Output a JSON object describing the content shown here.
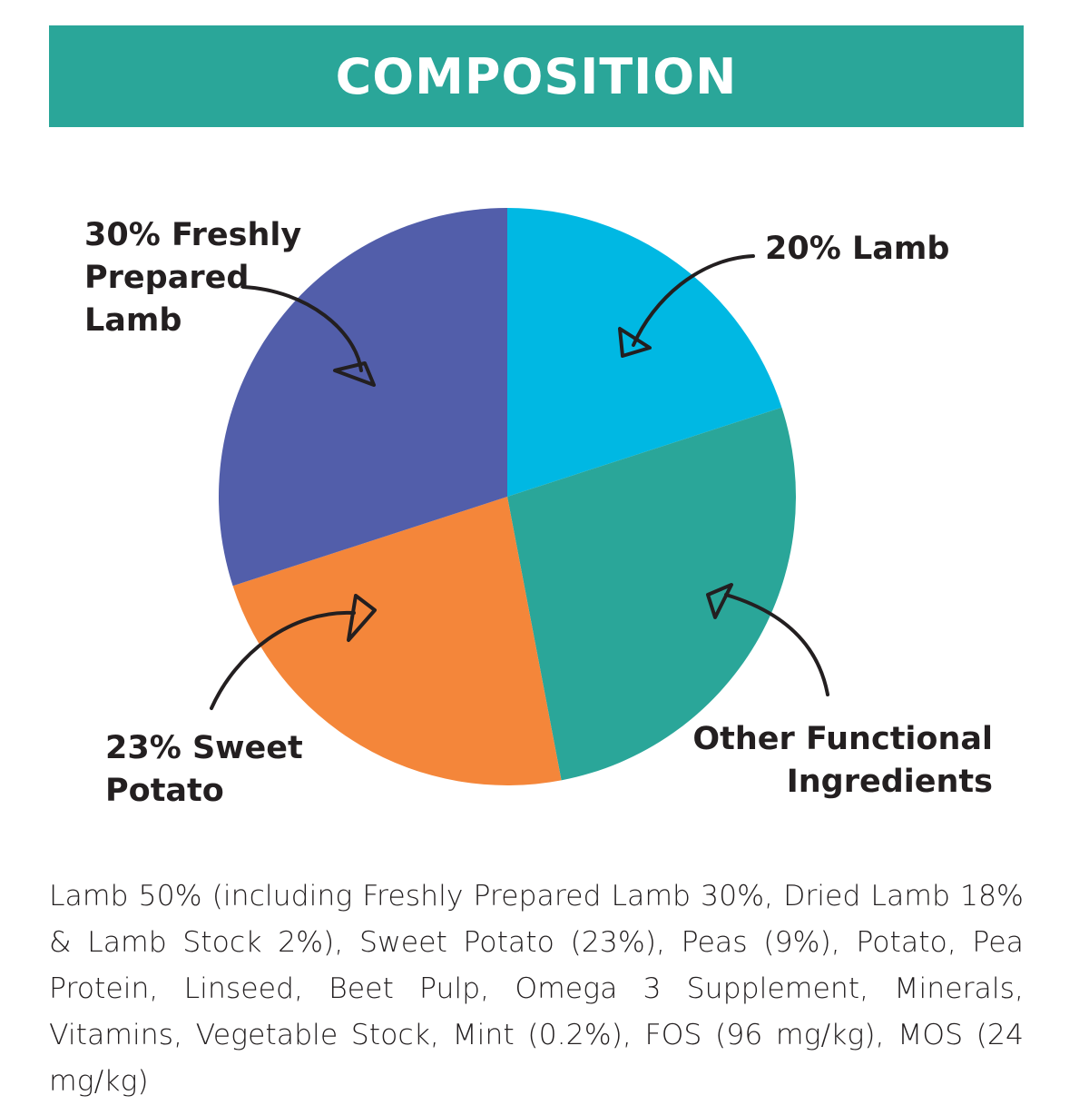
{
  "header": {
    "title": "COMPOSITION",
    "color": "#2aa699"
  },
  "chart_data": {
    "type": "pie",
    "title": "",
    "slices": [
      {
        "label_lines": [
          "20% Lamb"
        ],
        "value": 20,
        "color": "#00b8e3"
      },
      {
        "label_lines": [
          "Other Functional",
          "Ingredients"
        ],
        "value": 27,
        "color": "#2aa699"
      },
      {
        "label_lines": [
          "23% Sweet",
          "Potato"
        ],
        "value": 23,
        "color": "#f4863a"
      },
      {
        "label_lines": [
          "30% Freshly",
          "Prepared",
          "Lamb"
        ],
        "value": 30,
        "color": "#525eaa"
      }
    ]
  },
  "ingredients": {
    "text": "Lamb 50% (including Freshly Prepared Lamb 30%, Dried Lamb 18% & Lamb Stock 2%), Sweet Potato (23%), Peas (9%), Potato, Pea Protein, Linseed, Beet Pulp, Omega 3 Supplement, Minerals, Vitamins, Vegetable Stock, Mint (0.2%), FOS (96 mg/kg), MOS (24 mg/kg)"
  }
}
